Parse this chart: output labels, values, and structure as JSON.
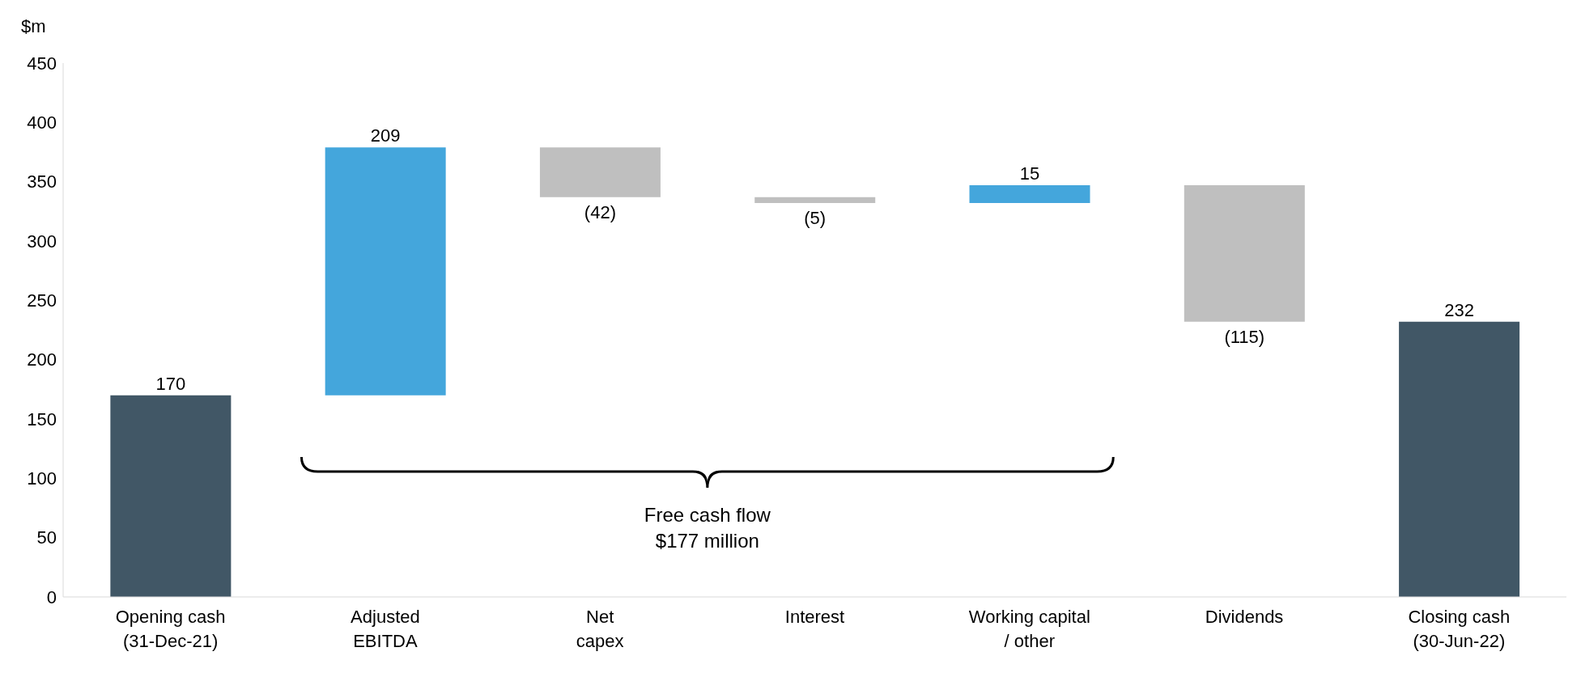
{
  "chart_data": {
    "type": "bar",
    "ylabel": "$m",
    "categories": [
      "Opening cash\n(31-Dec-21)",
      "Adjusted\nEBITDA",
      "Net\ncapex",
      "Interest",
      "Working capital\n/ other",
      "Dividends",
      "Closing cash\n(30-Jun-22)"
    ],
    "values": [
      170,
      209,
      -42,
      -5,
      15,
      -115,
      232
    ],
    "base": [
      0,
      170,
      379,
      337,
      332,
      347,
      0
    ],
    "colors": [
      "#415766",
      "#44a6dc",
      "#bfbfbf",
      "#bfbfbf",
      "#44a6dc",
      "#bfbfbf",
      "#415766"
    ],
    "value_labels": [
      "170",
      "209",
      "(42)",
      "(5)",
      "15",
      "(115)",
      "232"
    ],
    "ylim": [
      0,
      450
    ],
    "yticks": [
      0,
      50,
      100,
      150,
      200,
      250,
      300,
      350,
      400,
      450
    ],
    "grid": false,
    "legend": false,
    "annotations": [
      "Free cash flow\n$177 million"
    ]
  }
}
